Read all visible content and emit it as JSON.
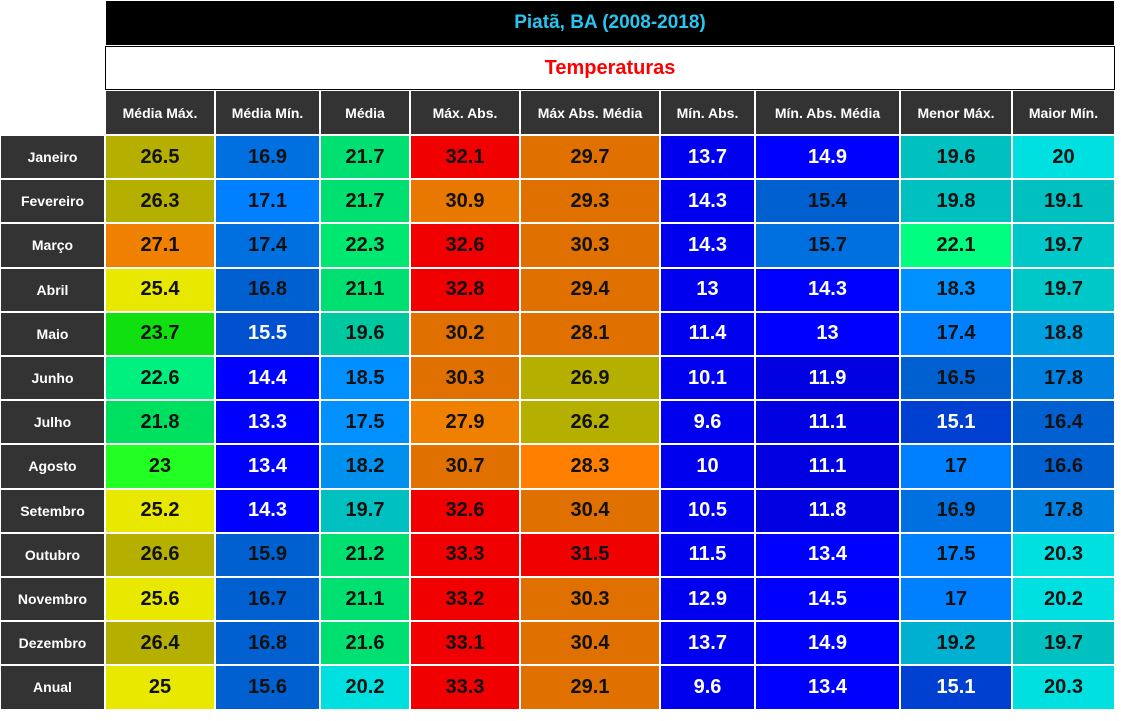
{
  "title": "Piatã, BA (2008-2018)",
  "subtitle": "Temperaturas",
  "columns": [
    "Média Máx.",
    "Média Mín.",
    "Média",
    "Máx. Abs.",
    "Máx Abs. Média",
    "Mín. Abs.",
    "Mín. Abs. Média",
    "Menor Máx.",
    "Maior Mín."
  ],
  "rows": [
    {
      "label": "Janeiro",
      "values": [
        26.5,
        16.9,
        21.7,
        32.1,
        29.7,
        13.7,
        14.9,
        19.6,
        20
      ],
      "colors": [
        "#b5b000",
        "#0070e0",
        "#00e070",
        "#f00000",
        "#e07000",
        "#0000ee",
        "#0000ff",
        "#00c0c0",
        "#00e0e0"
      ]
    },
    {
      "label": "Fevereiro",
      "values": [
        26.3,
        17.1,
        21.7,
        30.9,
        29.3,
        14.3,
        15.4,
        19.8,
        19.1
      ],
      "colors": [
        "#b5b000",
        "#0080ff",
        "#00e070",
        "#e87800",
        "#e07000",
        "#0000ee",
        "#0060d0",
        "#00c0c0",
        "#00c0c0"
      ]
    },
    {
      "label": "Março",
      "values": [
        27.1,
        17.4,
        22.3,
        32.6,
        30.3,
        14.3,
        15.7,
        22.1,
        19.7
      ],
      "colors": [
        "#f08000",
        "#0070e0",
        "#00e870",
        "#f00000",
        "#e07000",
        "#0000ee",
        "#0070e0",
        "#00ff80",
        "#00c8c8"
      ]
    },
    {
      "label": "Abril",
      "values": [
        25.4,
        16.8,
        21.1,
        32.8,
        29.4,
        13,
        14.3,
        18.3,
        19.7
      ],
      "colors": [
        "#e8e800",
        "#0060d0",
        "#00e070",
        "#f00000",
        "#e07000",
        "#0000ee",
        "#0000ff",
        "#0090ff",
        "#00c8c8"
      ]
    },
    {
      "label": "Maio",
      "values": [
        23.7,
        15.5,
        19.6,
        30.2,
        28.1,
        11.4,
        13,
        17.4,
        18.8
      ],
      "colors": [
        "#10e010",
        "#0050d0",
        "#00c8a0",
        "#e07000",
        "#e07000",
        "#0000ee",
        "#0000ff",
        "#0080ff",
        "#00a0e0"
      ]
    },
    {
      "label": "Junho",
      "values": [
        22.6,
        14.4,
        18.5,
        30.3,
        26.9,
        10.1,
        11.9,
        16.5,
        17.8
      ],
      "colors": [
        "#00f080",
        "#0000ff",
        "#0090ff",
        "#e07000",
        "#b5b000",
        "#0000ee",
        "#0000e0",
        "#0060d0",
        "#0080e0"
      ]
    },
    {
      "label": "Julho",
      "values": [
        21.8,
        13.3,
        17.5,
        27.9,
        26.2,
        9.6,
        11.1,
        15.1,
        16.4
      ],
      "colors": [
        "#00e060",
        "#0000ff",
        "#0090ff",
        "#f08000",
        "#b5b000",
        "#0000ee",
        "#0000e0",
        "#0040d0",
        "#0060d0"
      ]
    },
    {
      "label": "Agosto",
      "values": [
        23,
        13.4,
        18.2,
        30.7,
        28.3,
        10,
        11.1,
        17,
        16.6
      ],
      "colors": [
        "#22ff22",
        "#0000ff",
        "#0090f0",
        "#e07000",
        "#ff8000",
        "#0000ee",
        "#0000e0",
        "#0080ff",
        "#0060d0"
      ]
    },
    {
      "label": "Setembro",
      "values": [
        25.2,
        14.3,
        19.7,
        32.6,
        30.4,
        10.5,
        11.8,
        16.9,
        17.8
      ],
      "colors": [
        "#e8e800",
        "#0000ff",
        "#00c0c0",
        "#f00000",
        "#e07000",
        "#0000ee",
        "#0000e0",
        "#0070e0",
        "#0080e0"
      ]
    },
    {
      "label": "Outubro",
      "values": [
        26.6,
        15.9,
        21.2,
        33.3,
        31.5,
        11.5,
        13.4,
        17.5,
        20.3
      ],
      "colors": [
        "#b5b000",
        "#0060d0",
        "#00e070",
        "#f00000",
        "#f00000",
        "#0000ee",
        "#0000ff",
        "#0080ff",
        "#00e0e0"
      ]
    },
    {
      "label": "Novembro",
      "values": [
        25.6,
        16.7,
        21.1,
        33.2,
        30.3,
        12.9,
        14.5,
        17,
        20.2
      ],
      "colors": [
        "#e8e800",
        "#0060d0",
        "#00e070",
        "#f00000",
        "#e07000",
        "#0000ee",
        "#0000ff",
        "#0080ff",
        "#00e0e0"
      ]
    },
    {
      "label": "Dezembro",
      "values": [
        26.4,
        16.8,
        21.6,
        33.1,
        30.4,
        13.7,
        14.9,
        19.2,
        19.7
      ],
      "colors": [
        "#b5b000",
        "#0060d0",
        "#00e070",
        "#f00000",
        "#e07000",
        "#0000ee",
        "#0000ff",
        "#00b0d0",
        "#00c0c0"
      ]
    },
    {
      "label": "Anual",
      "values": [
        25,
        15.6,
        20.2,
        33.3,
        29.1,
        9.6,
        13.4,
        15.1,
        20.3
      ],
      "colors": [
        "#e8e800",
        "#0060d0",
        "#00e0e0",
        "#f00000",
        "#e07000",
        "#0000ee",
        "#0000ff",
        "#0040d0",
        "#00e0e0"
      ]
    }
  ]
}
